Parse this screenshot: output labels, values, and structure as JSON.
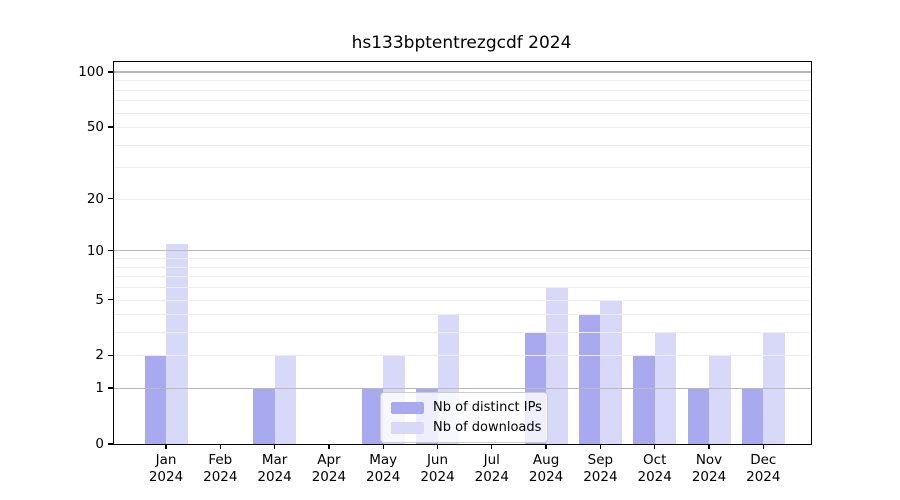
{
  "figure": {
    "title": "hs133bptentrezgcdf 2024"
  },
  "legend": {
    "items": [
      {
        "label": "Nb of distinct IPs",
        "color": "#a9a9f0"
      },
      {
        "label": "Nb of downloads",
        "color": "#d8d8f8"
      }
    ]
  },
  "chart_data": {
    "type": "bar",
    "title": "hs133bptentrezgcdf 2024",
    "categories": [
      "Jan 2024",
      "Feb 2024",
      "Mar 2024",
      "Apr 2024",
      "May 2024",
      "Jun 2024",
      "Jul 2024",
      "Aug 2024",
      "Sep 2024",
      "Oct 2024",
      "Nov 2024",
      "Dec 2024"
    ],
    "series": [
      {
        "name": "Nb of distinct IPs",
        "color": "#a9a9f0",
        "values": [
          2,
          0,
          1,
          0,
          1,
          1,
          0,
          3,
          4,
          2,
          1,
          1
        ]
      },
      {
        "name": "Nb of downloads",
        "color": "#d8d8f8",
        "values": [
          11,
          0,
          2,
          0,
          2,
          4,
          0,
          6,
          5,
          3,
          2,
          3
        ]
      }
    ],
    "yscale": "log1p",
    "ylim": [
      0,
      113
    ],
    "yticks": [
      0,
      1,
      2,
      5,
      10,
      20,
      50,
      100
    ],
    "emphasized_gridlines": [
      1,
      10,
      100
    ],
    "faint_gridlines": [
      2,
      3,
      4,
      5,
      6,
      7,
      8,
      9,
      20,
      30,
      40,
      50,
      60,
      70,
      80,
      90
    ],
    "grid": "horizontal",
    "legend_position": "lower center",
    "colors": {
      "axis": "#000000",
      "grid_emphasized": "#b9b9b9",
      "grid_faint": "#ededed",
      "background": "#ffffff"
    }
  }
}
